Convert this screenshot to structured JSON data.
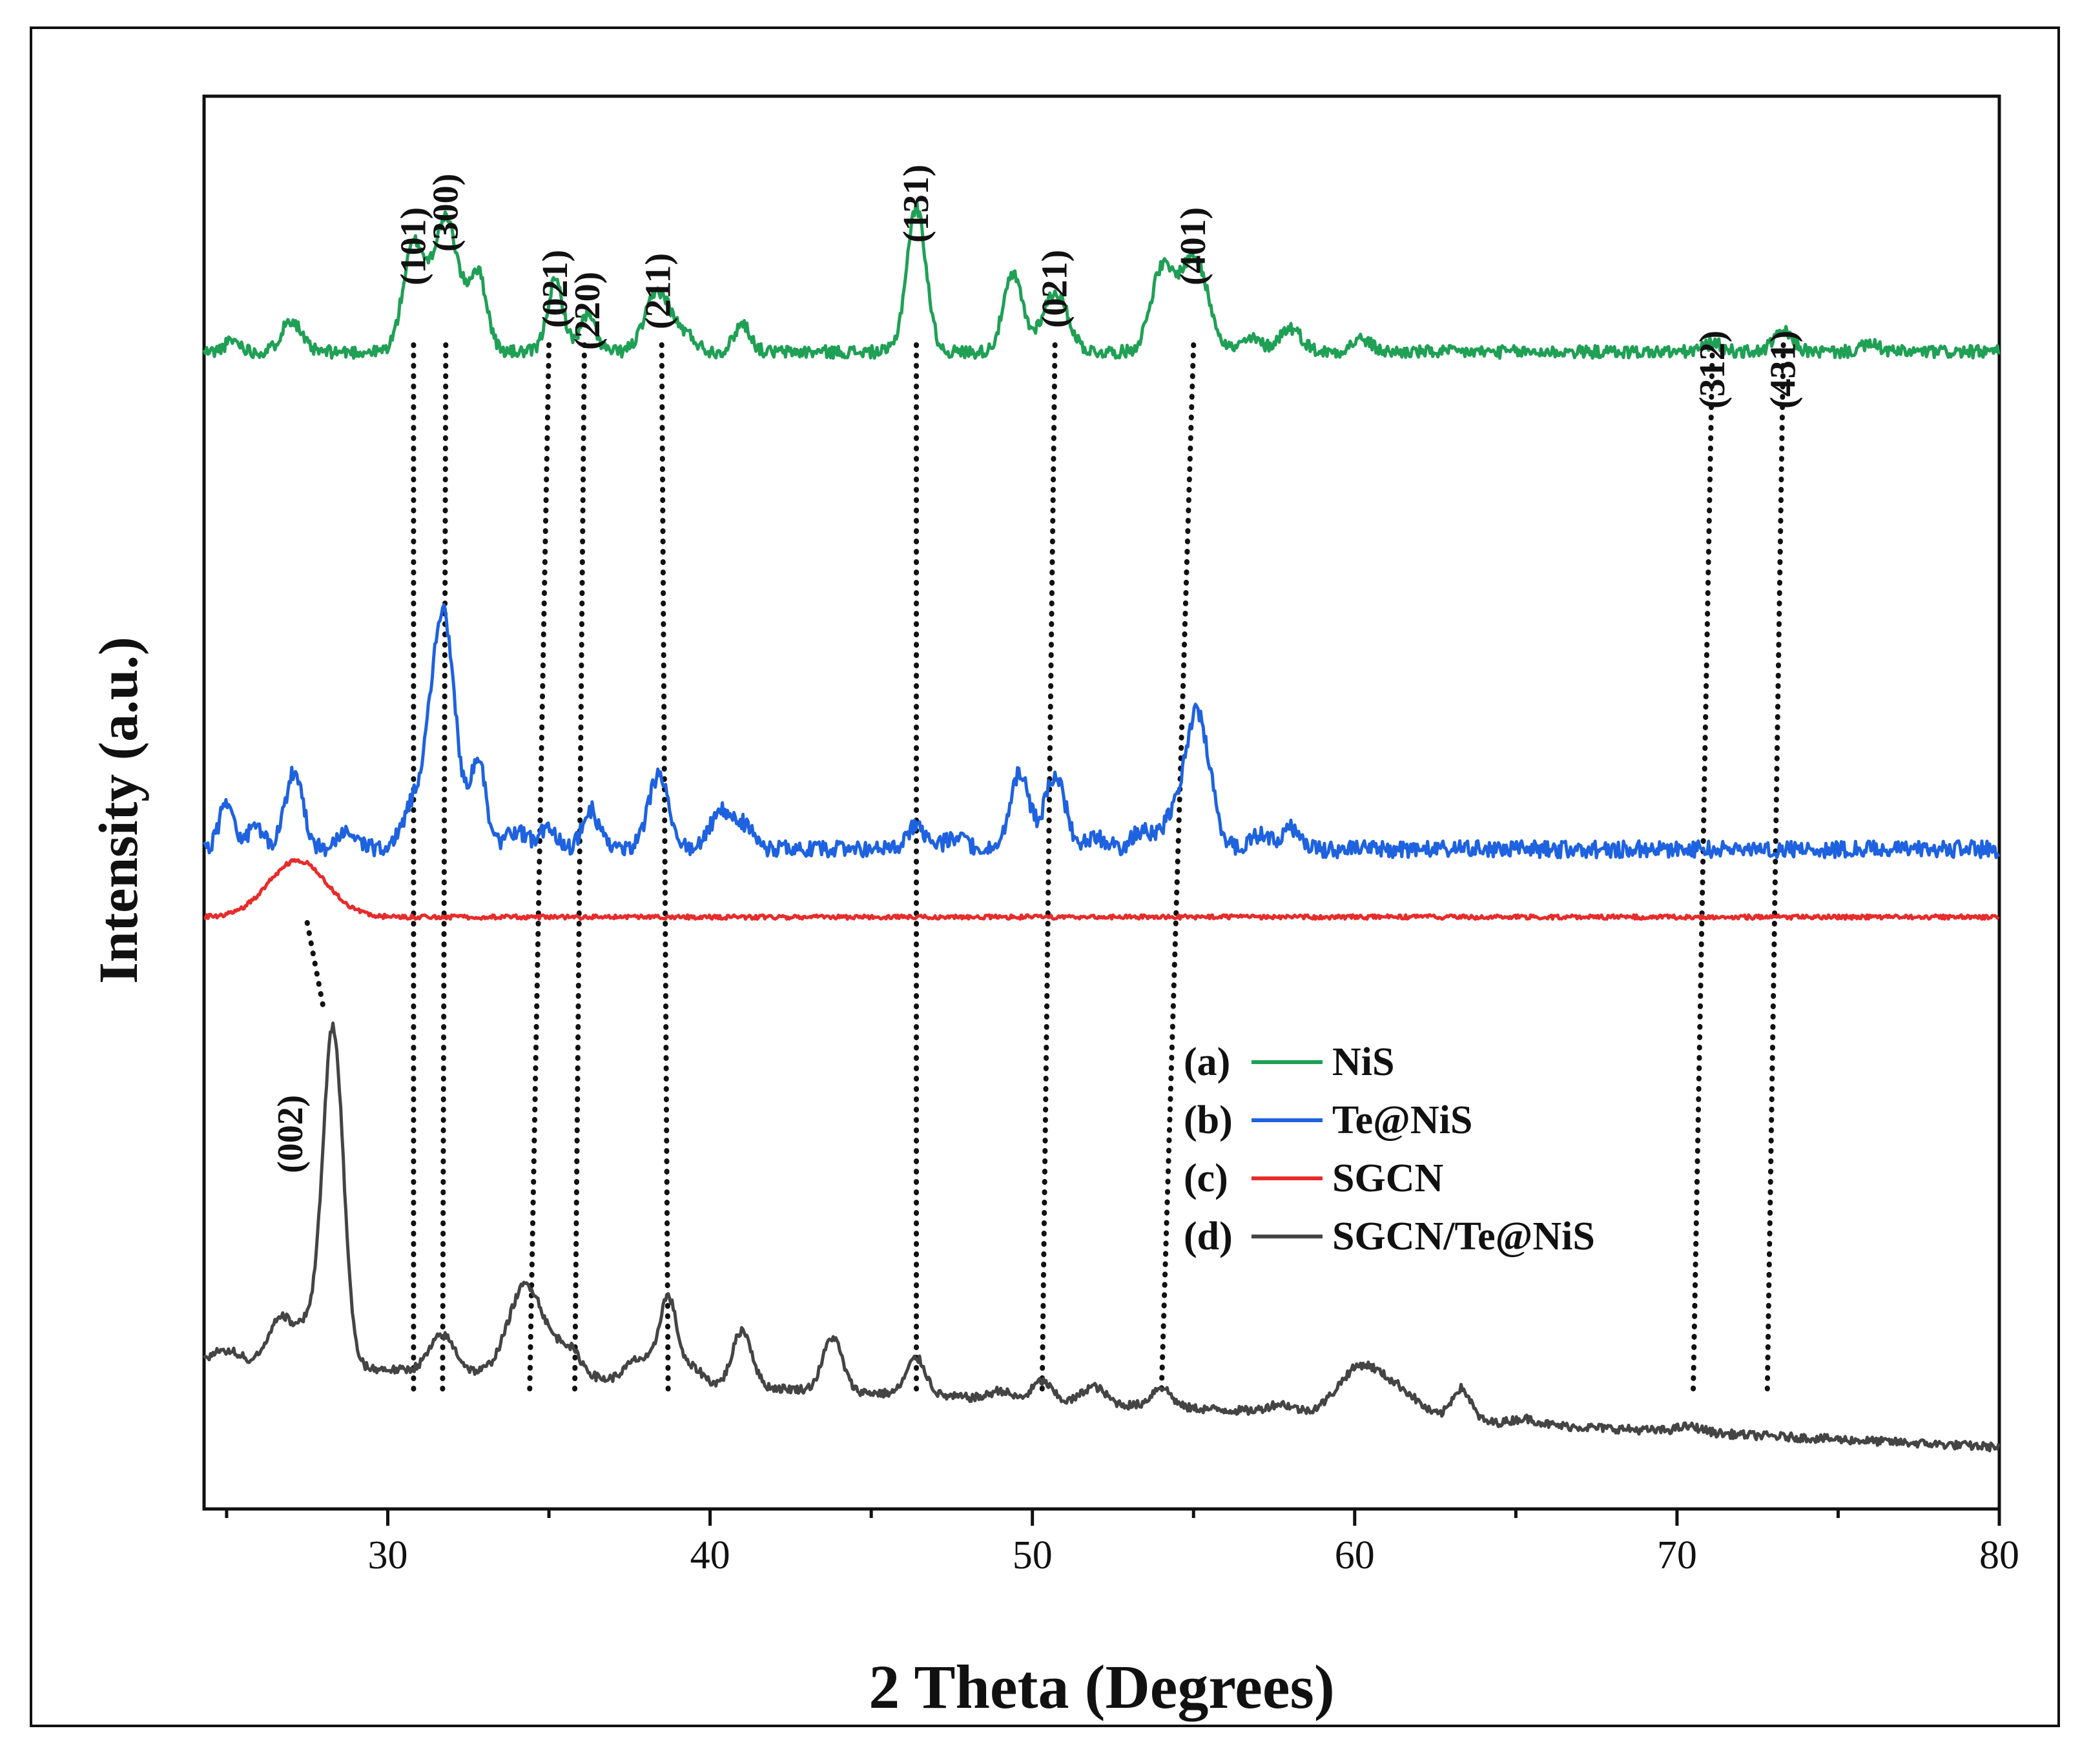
{
  "chart_data": {
    "type": "line",
    "title": "",
    "xlabel": "2 Theta (Degrees)",
    "ylabel": "Intensity (a.u.)",
    "xlim": [
      24.3,
      80
    ],
    "ylim": [
      0,
      100
    ],
    "grid": false,
    "x_ticks": [
      30,
      40,
      50,
      60,
      70,
      80
    ],
    "x_tick_labels": [
      "30",
      "40",
      "50",
      "60",
      "70",
      "80"
    ],
    "legend_position": "center-right",
    "series": [
      {
        "name": "NiS",
        "legend_prefix": "(a)",
        "color": "#1fa055",
        "baseline": 81.9,
        "noise": 0.45,
        "seed": 11,
        "peaks": [
          [
            25.2,
            0.8,
            0.25
          ],
          [
            27.0,
            2.3,
            0.3
          ],
          [
            30.8,
            7.4,
            0.33
          ],
          [
            31.8,
            9.4,
            0.4
          ],
          [
            32.8,
            5.4,
            0.28
          ],
          [
            35.2,
            5.0,
            0.25
          ],
          [
            36.2,
            2.6,
            0.25
          ],
          [
            38.4,
            4.3,
            0.4
          ],
          [
            39.3,
            1.0,
            0.3
          ],
          [
            41.0,
            2.0,
            0.25
          ],
          [
            46.4,
            10.2,
            0.3
          ],
          [
            49.4,
            5.4,
            0.3
          ],
          [
            50.7,
            4.2,
            0.4
          ],
          [
            54.0,
            5.5,
            0.35
          ],
          [
            55.0,
            6.7,
            0.45
          ],
          [
            56.8,
            0.9,
            0.3
          ],
          [
            58.0,
            1.7,
            0.35
          ],
          [
            60.2,
            0.9,
            0.3
          ],
          [
            71.1,
            0.6,
            0.3
          ],
          [
            73.3,
            1.4,
            0.3
          ],
          [
            76.0,
            0.5,
            0.3
          ]
        ]
      },
      {
        "name": "Te@NiS",
        "legend_prefix": "(b)",
        "color": "#1e62e0",
        "baseline": 46.7,
        "noise": 0.6,
        "seed": 29,
        "peaks": [
          [
            25.0,
            3.5,
            0.22
          ],
          [
            25.9,
            1.6,
            0.25
          ],
          [
            27.1,
            5.5,
            0.28
          ],
          [
            28.8,
            1.2,
            0.3
          ],
          [
            30.8,
            3.0,
            0.35
          ],
          [
            31.7,
            16.8,
            0.38
          ],
          [
            32.8,
            6.2,
            0.25
          ],
          [
            34.0,
            1.3,
            0.3
          ],
          [
            35.0,
            1.4,
            0.3
          ],
          [
            36.3,
            2.8,
            0.25
          ],
          [
            38.4,
            5.1,
            0.32
          ],
          [
            40.3,
            2.6,
            0.3
          ],
          [
            41.0,
            1.8,
            0.3
          ],
          [
            46.4,
            1.8,
            0.25
          ],
          [
            47.6,
            0.9,
            0.3
          ],
          [
            49.6,
            5.3,
            0.3
          ],
          [
            50.7,
            5.2,
            0.32
          ],
          [
            52.0,
            0.8,
            0.3
          ],
          [
            53.4,
            1.3,
            0.3
          ],
          [
            54.2,
            1.4,
            0.3
          ],
          [
            55.1,
            9.7,
            0.4
          ],
          [
            57.0,
            1.0,
            0.3
          ],
          [
            58.0,
            1.5,
            0.3
          ]
        ]
      },
      {
        "name": "SGCN",
        "legend_prefix": "(c)",
        "color": "#e82b2b",
        "baseline": 41.9,
        "noise": 0.15,
        "seed": 47,
        "peaks": [
          [
            27.2,
            4.0,
            0.9
          ]
        ]
      },
      {
        "name": "SGCN/Te@NiS",
        "legend_prefix": "(d)",
        "color": "#444444",
        "baseline": 10.5,
        "noise": 0.3,
        "seed": 73,
        "peaks": [
          [
            25.0,
            0.8,
            0.4
          ],
          [
            26.7,
            3.3,
            0.4
          ],
          [
            27.5,
            2.4,
            0.3
          ],
          [
            28.3,
            24.0,
            0.32
          ],
          [
            31.7,
            2.6,
            0.4
          ],
          [
            34.3,
            6.5,
            0.55
          ],
          [
            35.6,
            2.0,
            0.4
          ],
          [
            37.8,
            1.6,
            0.4
          ],
          [
            38.7,
            6.0,
            0.28
          ],
          [
            39.5,
            1.1,
            0.3
          ],
          [
            41.0,
            4.0,
            0.3
          ],
          [
            43.8,
            3.8,
            0.3
          ],
          [
            46.4,
            2.6,
            0.3
          ],
          [
            49.0,
            0.6,
            0.3
          ],
          [
            50.3,
            1.4,
            0.3
          ],
          [
            51.9,
            1.2,
            0.35
          ],
          [
            54.0,
            1.4,
            0.3
          ],
          [
            57.7,
            0.6,
            0.4
          ],
          [
            60.2,
            3.5,
            0.7
          ],
          [
            61.5,
            1.5,
            0.6
          ],
          [
            63.3,
            2.3,
            0.3
          ],
          [
            65.3,
            0.4,
            0.4
          ],
          [
            70.4,
            0.4,
            0.4
          ]
        ]
      }
    ],
    "annotations": [
      {
        "text": "(101)",
        "x": 30.8
      },
      {
        "text": "(300)",
        "x": 31.8
      },
      {
        "text": "(021)",
        "x": 35.2
      },
      {
        "text": "(220)",
        "x": 36.2
      },
      {
        "text": "(211)",
        "x": 38.4
      },
      {
        "text": "(131)",
        "x": 46.4
      },
      {
        "text": "(021)",
        "x": 50.7
      },
      {
        "text": "(401)",
        "x": 55.0
      },
      {
        "text": "(312)",
        "x": 71.1
      },
      {
        "text": "(431)",
        "x": 73.3
      },
      {
        "text": "(002)",
        "x": 27.2
      }
    ],
    "dotted_guides": [
      {
        "top_x": 30.8,
        "bottom_x": 30.8
      },
      {
        "top_x": 31.8,
        "bottom_x": 31.7
      },
      {
        "top_x": 35.0,
        "bottom_x": 34.4
      },
      {
        "top_x": 36.1,
        "bottom_x": 35.8
      },
      {
        "top_x": 38.5,
        "bottom_x": 38.7
      },
      {
        "top_x": 46.4,
        "bottom_x": 46.4
      },
      {
        "top_x": 50.7,
        "bottom_x": 50.3
      },
      {
        "top_x": 55.0,
        "bottom_x": 54.0
      },
      {
        "top_x": 71.1,
        "bottom_x": 70.5
      },
      {
        "top_x": 73.3,
        "bottom_x": 72.8
      },
      {
        "top_x": 27.5,
        "bottom_x": 28.0
      }
    ]
  }
}
